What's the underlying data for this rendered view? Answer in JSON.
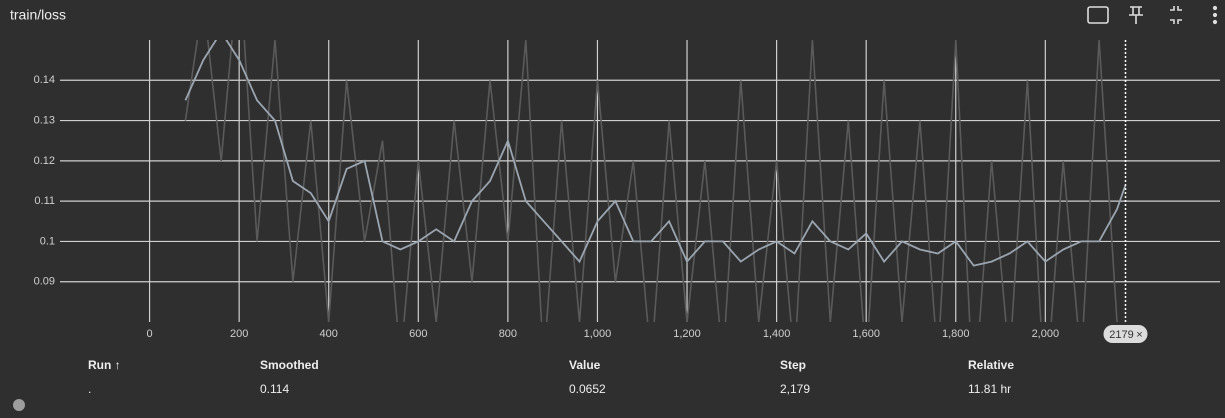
{
  "title": "train/loss",
  "chart_data": {
    "type": "line",
    "x": [
      80,
      120,
      160,
      200,
      240,
      280,
      320,
      360,
      400,
      440,
      480,
      520,
      560,
      600,
      640,
      680,
      720,
      760,
      800,
      840,
      880,
      920,
      960,
      1000,
      1040,
      1080,
      1120,
      1160,
      1200,
      1240,
      1280,
      1320,
      1360,
      1400,
      1440,
      1480,
      1520,
      1560,
      1600,
      1640,
      1680,
      1720,
      1760,
      1800,
      1840,
      1880,
      1920,
      1960,
      2000,
      2040,
      2080,
      2120,
      2160,
      2179
    ],
    "series": [
      {
        "name": "Value",
        "color": "#5a5a5a",
        "values": [
          0.13,
          0.16,
          0.12,
          0.17,
          0.1,
          0.15,
          0.09,
          0.13,
          0.08,
          0.14,
          0.1,
          0.125,
          0.07,
          0.12,
          0.08,
          0.13,
          0.09,
          0.14,
          0.1,
          0.15,
          0.07,
          0.13,
          0.08,
          0.14,
          0.09,
          0.12,
          0.07,
          0.13,
          0.08,
          0.12,
          0.07,
          0.14,
          0.08,
          0.12,
          0.07,
          0.15,
          0.08,
          0.13,
          0.07,
          0.14,
          0.08,
          0.13,
          0.07,
          0.15,
          0.06,
          0.12,
          0.07,
          0.14,
          0.06,
          0.12,
          0.07,
          0.15,
          0.08,
          0.0652
        ]
      },
      {
        "name": "Smoothed",
        "color": "#9aa5b0",
        "values": [
          0.135,
          0.145,
          0.152,
          0.145,
          0.135,
          0.13,
          0.115,
          0.112,
          0.105,
          0.118,
          0.12,
          0.1,
          0.098,
          0.1,
          0.103,
          0.1,
          0.11,
          0.115,
          0.125,
          0.11,
          0.105,
          0.1,
          0.095,
          0.105,
          0.11,
          0.1,
          0.1,
          0.105,
          0.095,
          0.1,
          0.1,
          0.095,
          0.098,
          0.1,
          0.097,
          0.105,
          0.1,
          0.098,
          0.102,
          0.095,
          0.1,
          0.098,
          0.097,
          0.1,
          0.094,
          0.095,
          0.097,
          0.1,
          0.095,
          0.098,
          0.1,
          0.1,
          0.108,
          0.114
        ]
      }
    ],
    "xlim": [
      -200,
      2390
    ],
    "ylim": [
      0.08,
      0.15
    ],
    "xticks": [
      0,
      200,
      400,
      600,
      800,
      {
        "value": 1000,
        "label": "1,000"
      },
      {
        "value": 1200,
        "label": "1,200"
      },
      {
        "value": 1400,
        "label": "1,400"
      },
      {
        "value": 1600,
        "label": "1,600"
      },
      {
        "value": 1800,
        "label": "1,800"
      },
      {
        "value": 2000,
        "label": "2,000"
      }
    ],
    "yticks": [
      0.09,
      0.1,
      0.11,
      0.12,
      0.13,
      0.14
    ],
    "grid": true,
    "cursor": {
      "value": 2179,
      "label": "2179"
    }
  },
  "table": {
    "headers": [
      "Run ↑",
      "Smoothed",
      "Value",
      "Step",
      "Relative"
    ],
    "row": [
      ".",
      "0.114",
      "0.0652",
      "2,179",
      "11.81 hr"
    ]
  }
}
